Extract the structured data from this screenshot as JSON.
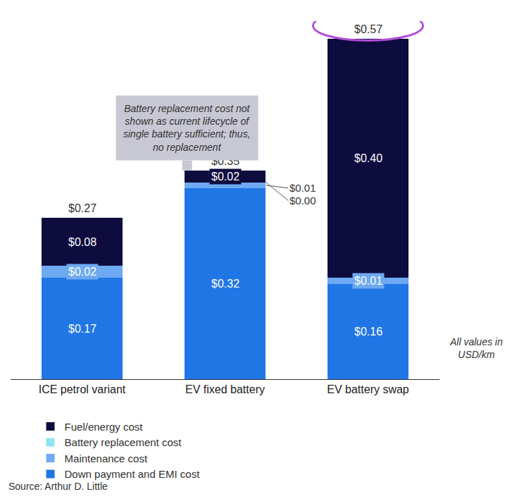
{
  "chart_data": {
    "type": "bar",
    "stacked": true,
    "data_labels": true,
    "tick_labels": "x",
    "legend": "bottom",
    "categories": [
      "ICE petrol variant",
      "EV fixed battery",
      "EV battery swap"
    ],
    "ylim": [
      0,
      0.6
    ],
    "series": [
      {
        "name": "Down payment and EMI cost",
        "color": "#2176e6",
        "values": [
          0.17,
          0.32,
          0.16
        ],
        "value_labels": [
          "$0.17",
          "$0.32",
          "$0.16"
        ]
      },
      {
        "name": "Maintenance cost",
        "color": "#6eaaf2",
        "values": [
          0.02,
          0.01,
          0.01
        ],
        "value_labels": [
          "$0.02",
          "$0.01",
          "$0.01"
        ]
      },
      {
        "name": "Battery replacement cost",
        "color": "#8fe6f3",
        "values": [
          null,
          0.0,
          null
        ],
        "value_labels": [
          null,
          "$0.00",
          null
        ]
      },
      {
        "name": "Fuel/energy cost",
        "color": "#0e0b3e",
        "values": [
          0.08,
          0.02,
          0.4
        ],
        "value_labels": [
          "$0.08",
          "$0.02",
          "$0.40"
        ]
      }
    ],
    "totals": [
      0.27,
      0.35,
      0.57
    ],
    "total_labels": [
      "$0.27",
      "$0.35",
      "$0.57"
    ],
    "callout": [
      "Battery replacement cost not",
      "shown as current lifecycle of",
      "single battery sufficient; thus,",
      "no replacement"
    ],
    "unit_note": [
      "All values in",
      "USD/km"
    ],
    "source": "Source: Arthur D. Little"
  }
}
